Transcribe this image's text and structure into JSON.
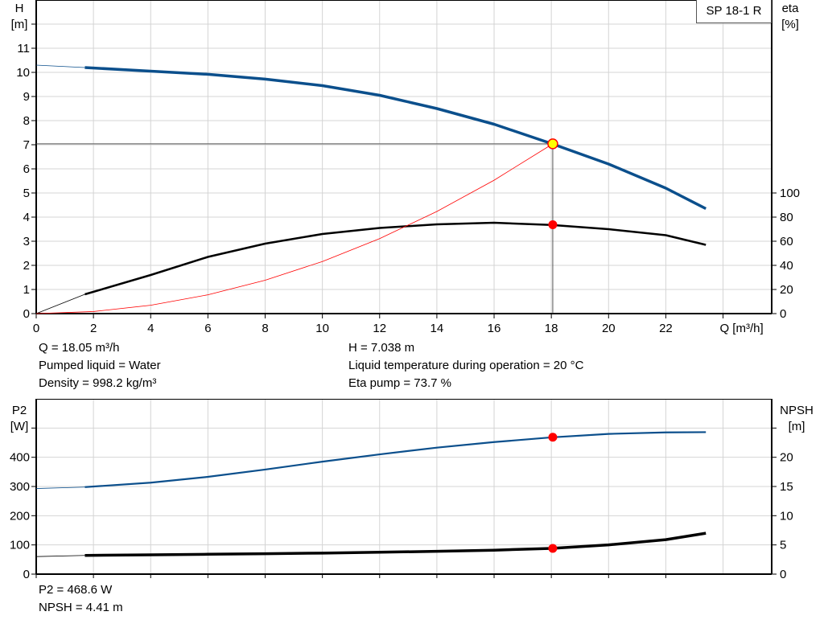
{
  "model_label": "SP 18-1 R",
  "colors": {
    "head": "#0b4f8c",
    "eta": "#000000",
    "system": "#ff0000",
    "p2": "#0b4f8c",
    "npsh": "#000000",
    "marker": "#ff0000",
    "head_marker_fill": "#ffff00",
    "grid": "#d4d4d4"
  },
  "info_top": {
    "q": "Q = 18.05 m³/h",
    "liquid": "Pumped liquid = Water",
    "density": "Density = 998.2 kg/m³",
    "h": "H = 7.038 m",
    "temp": "Liquid temperature during operation = 20 °C",
    "eta": "Eta pump = 73.7 %"
  },
  "info_bottom": {
    "p2": "P2 = 468.6 W",
    "npsh": "NPSH = 4.41 m"
  },
  "chart_data": [
    {
      "type": "line",
      "title": "",
      "xlabel": "Q [m³/h]",
      "ylabel_left": "H\n[m]",
      "ylabel_left_lines": [
        "H",
        "[m]"
      ],
      "ylabel_right_lines": [
        "eta",
        "[%]"
      ],
      "xlim": [
        0,
        25.7
      ],
      "ylim_left": [
        0,
        13
      ],
      "ylim_right": [
        0,
        260
      ],
      "x_ticks": [
        0,
        2,
        4,
        6,
        8,
        10,
        12,
        14,
        16,
        18,
        20,
        22
      ],
      "y_ticks_left": [
        0,
        1,
        2,
        3,
        4,
        5,
        6,
        7,
        8,
        9,
        10,
        11
      ],
      "y_ticks_right": [
        0,
        20,
        40,
        60,
        80,
        100
      ],
      "grid": true,
      "series": [
        {
          "key": "head",
          "axis": "left",
          "x": [
            0,
            1.7,
            4,
            6,
            8,
            10,
            12,
            14,
            16,
            18,
            20,
            22,
            23.4
          ],
          "y": [
            10.3,
            10.2,
            10.05,
            9.92,
            9.72,
            9.45,
            9.05,
            8.5,
            7.85,
            7.05,
            6.2,
            5.2,
            4.35
          ]
        },
        {
          "key": "eta",
          "axis": "right",
          "x": [
            0,
            1.7,
            4,
            6,
            8,
            10,
            12,
            14,
            16,
            18,
            20,
            22,
            23.4
          ],
          "y": [
            0,
            16,
            32,
            47,
            58,
            66,
            71,
            74,
            75.3,
            73.5,
            70,
            65,
            57
          ]
        },
        {
          "key": "system",
          "axis": "left",
          "x": [
            0,
            2,
            4,
            6,
            8,
            10,
            12,
            14,
            16,
            18.05
          ],
          "y": [
            0,
            0.086,
            0.346,
            0.778,
            1.383,
            2.16,
            3.11,
            4.234,
            5.53,
            7.038
          ]
        }
      ],
      "operating_point": {
        "q": 18.05,
        "h": 7.038,
        "eta": 73.7
      }
    },
    {
      "type": "line",
      "title": "",
      "ylabel_left_lines": [
        "P2",
        "[W]"
      ],
      "ylabel_right_lines": [
        "NPSH",
        "[m]"
      ],
      "xlim": [
        0,
        25.7
      ],
      "ylim_left": [
        0,
        600
      ],
      "ylim_right": [
        0,
        30
      ],
      "x_ticks": [
        0,
        2,
        4,
        6,
        8,
        10,
        12,
        14,
        16,
        18,
        20,
        22
      ],
      "y_ticks_left": [
        0,
        100,
        200,
        300,
        400
      ],
      "y_ticks_right": [
        0,
        5,
        10,
        15,
        20
      ],
      "grid": true,
      "series": [
        {
          "key": "p2",
          "axis": "left",
          "x": [
            0,
            1.7,
            4,
            6,
            8,
            10,
            12,
            14,
            16,
            18,
            20,
            22,
            23.4
          ],
          "y": [
            293,
            298,
            313,
            333,
            358,
            385,
            410,
            433,
            452,
            468,
            480,
            485,
            486
          ]
        },
        {
          "key": "npsh",
          "axis": "right",
          "x": [
            0,
            1.7,
            4,
            6,
            8,
            10,
            12,
            14,
            16,
            18,
            20,
            22,
            23.4
          ],
          "y": [
            3.0,
            3.2,
            3.3,
            3.4,
            3.5,
            3.6,
            3.75,
            3.9,
            4.1,
            4.41,
            5.0,
            5.9,
            7.0
          ]
        }
      ],
      "operating_point": {
        "q": 18.05,
        "p2": 468.6,
        "npsh": 4.41
      }
    }
  ]
}
